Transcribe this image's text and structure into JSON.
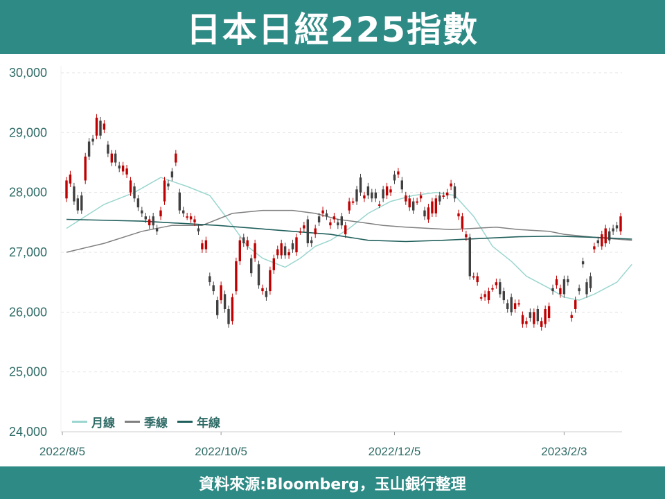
{
  "header": {
    "title": "日本日經225指數"
  },
  "footer": {
    "source": "資料來源:Bloomberg，玉山銀行整理"
  },
  "colors": {
    "band": "#2e8a85",
    "up": "#c00000",
    "down": "#404040",
    "month": "#9ad6cf",
    "quarter": "#7f7f7f",
    "year": "#1f5f5b"
  },
  "chart_data": {
    "type": "candlestick",
    "title": "日本日經225指數",
    "ylim": [
      24000,
      30000
    ],
    "y_ticks": [
      24000,
      25000,
      26000,
      27000,
      28000,
      29000,
      30000
    ],
    "y_tick_labels": [
      "24,000",
      "25,000",
      "26,000",
      "27,000",
      "28,000",
      "29,000",
      "30,000"
    ],
    "x_tick_labels": [
      "2022/8/5",
      "2022/10/5",
      "2022/12/5",
      "2023/2/3"
    ],
    "x_tick_index": [
      0,
      41,
      87,
      132
    ],
    "legend": [
      "月線",
      "季線",
      "年線"
    ],
    "legend_position": "bottom-left",
    "grid": "horizontal-dashed",
    "candles": [
      [
        27900,
        28200
      ],
      [
        28150,
        28300
      ],
      [
        28100,
        27850
      ],
      [
        27900,
        27700
      ],
      [
        27950,
        27700
      ],
      [
        28200,
        28600
      ],
      [
        28850,
        28600
      ],
      [
        28900,
        28850
      ],
      [
        28950,
        29250
      ],
      [
        29200,
        28950
      ],
      [
        29050,
        29150
      ],
      [
        28800,
        28650
      ],
      [
        28500,
        28650
      ],
      [
        28650,
        28500
      ],
      [
        28450,
        28400
      ],
      [
        28350,
        28450
      ],
      [
        28300,
        28400
      ],
      [
        28000,
        28200
      ],
      [
        28100,
        27900
      ],
      [
        27900,
        27750
      ],
      [
        27700,
        27650
      ],
      [
        27600,
        27550
      ],
      [
        27450,
        27550
      ],
      [
        27600,
        27450
      ],
      [
        27400,
        27350
      ],
      [
        27600,
        27700
      ],
      [
        27850,
        28200
      ],
      [
        28150,
        28100
      ],
      [
        28350,
        28250
      ],
      [
        28500,
        28650
      ],
      [
        28000,
        27700
      ],
      [
        27700,
        27650
      ],
      [
        27600,
        27600
      ],
      [
        27550,
        27600
      ],
      [
        27500,
        27550
      ],
      [
        27400,
        27350
      ],
      [
        27050,
        27150
      ],
      [
        27050,
        27200
      ],
      [
        26600,
        26500
      ],
      [
        26450,
        26350
      ],
      [
        26200,
        25950
      ],
      [
        26200,
        26450
      ],
      [
        26300,
        26050
      ],
      [
        26050,
        25800
      ],
      [
        25850,
        26250
      ],
      [
        26350,
        26850
      ],
      [
        26850,
        27200
      ],
      [
        27250,
        27150
      ],
      [
        27100,
        27200
      ],
      [
        26900,
        26650
      ],
      [
        26900,
        27150
      ],
      [
        26800,
        26450
      ],
      [
        26350,
        26400
      ],
      [
        26350,
        26250
      ],
      [
        26350,
        26700
      ],
      [
        26700,
        26900
      ],
      [
        26950,
        27050
      ],
      [
        26950,
        27150
      ],
      [
        27100,
        26950
      ],
      [
        26950,
        27000
      ],
      [
        27150,
        27050
      ],
      [
        27000,
        27250
      ],
      [
        27350,
        27350
      ],
      [
        27400,
        27450
      ],
      [
        27550,
        27150
      ],
      [
        27200,
        27150
      ],
      [
        27300,
        27400
      ],
      [
        27600,
        27500
      ],
      [
        27650,
        27700
      ],
      [
        27650,
        27600
      ],
      [
        27450,
        27500
      ],
      [
        27550,
        27600
      ],
      [
        27500,
        27450
      ],
      [
        27600,
        27450
      ],
      [
        27300,
        27450
      ],
      [
        27700,
        27850
      ],
      [
        27850,
        27850
      ],
      [
        28050,
        27850
      ],
      [
        28250,
        28000
      ],
      [
        27900,
        27950
      ],
      [
        28100,
        27950
      ],
      [
        28000,
        27900
      ],
      [
        28000,
        27900
      ],
      [
        27800,
        27800
      ],
      [
        28050,
        27900
      ],
      [
        27950,
        28100
      ],
      [
        28000,
        28050
      ],
      [
        28300,
        28200
      ],
      [
        28300,
        28350
      ],
      [
        28200,
        28050
      ],
      [
        27850,
        27950
      ],
      [
        27750,
        27900
      ],
      [
        27850,
        27700
      ],
      [
        27850,
        27850
      ],
      [
        27900,
        27950
      ],
      [
        27700,
        27600
      ],
      [
        27550,
        27750
      ],
      [
        27650,
        27850
      ],
      [
        27650,
        27900
      ],
      [
        27950,
        27850
      ],
      [
        27950,
        27950
      ],
      [
        27950,
        28000
      ],
      [
        28100,
        28150
      ],
      [
        28100,
        27900
      ],
      [
        27600,
        27650
      ],
      [
        27400,
        27600
      ],
      [
        27250,
        27300
      ],
      [
        27250,
        26600
      ],
      [
        26600,
        26600
      ],
      [
        26500,
        26600
      ],
      [
        26250,
        26250
      ],
      [
        26250,
        26300
      ],
      [
        26200,
        26350
      ],
      [
        26400,
        26400
      ],
      [
        26450,
        26500
      ],
      [
        26500,
        26300
      ],
      [
        26350,
        26200
      ],
      [
        26150,
        26050
      ],
      [
        26250,
        26000
      ],
      [
        26050,
        26150
      ],
      [
        26150,
        26150
      ],
      [
        25800,
        25950
      ],
      [
        25800,
        25850
      ],
      [
        26000,
        25900
      ],
      [
        25800,
        26000
      ],
      [
        26050,
        25850
      ],
      [
        25750,
        25850
      ],
      [
        25800,
        26050
      ],
      [
        25900,
        26100
      ],
      [
        26400,
        26350
      ],
      [
        26450,
        26550
      ],
      [
        26300,
        26400
      ],
      [
        26550,
        26300
      ],
      [
        26550,
        26500
      ],
      [
        25900,
        25950
      ],
      [
        26050,
        26200
      ],
      [
        26400,
        26350
      ],
      [
        26850,
        26800
      ],
      [
        26500,
        26300
      ],
      [
        26600,
        26400
      ],
      [
        27050,
        27100
      ],
      [
        27200,
        27150
      ],
      [
        27100,
        27300
      ],
      [
        27150,
        27400
      ],
      [
        27350,
        27200
      ],
      [
        27400,
        27350
      ],
      [
        27450,
        27400
      ],
      [
        27350,
        27600
      ]
    ],
    "series": [
      {
        "name": "月線",
        "points": [
          [
            0,
            27400
          ],
          [
            10,
            27800
          ],
          [
            18,
            28000
          ],
          [
            25,
            28250
          ],
          [
            32,
            28100
          ],
          [
            38,
            27950
          ],
          [
            44,
            27450
          ],
          [
            48,
            27100
          ],
          [
            52,
            26900
          ],
          [
            58,
            26750
          ],
          [
            62,
            26900
          ],
          [
            66,
            27100
          ],
          [
            70,
            27200
          ],
          [
            75,
            27400
          ],
          [
            80,
            27650
          ],
          [
            86,
            27850
          ],
          [
            92,
            27950
          ],
          [
            98,
            28000
          ],
          [
            103,
            27950
          ],
          [
            108,
            27600
          ],
          [
            113,
            27100
          ],
          [
            118,
            26850
          ],
          [
            122,
            26600
          ],
          [
            128,
            26400
          ],
          [
            132,
            26250
          ],
          [
            136,
            26200
          ],
          [
            140,
            26300
          ],
          [
            146,
            26500
          ],
          [
            150,
            26800
          ]
        ]
      },
      {
        "name": "季線",
        "points": [
          [
            0,
            27000
          ],
          [
            10,
            27150
          ],
          [
            20,
            27350
          ],
          [
            28,
            27450
          ],
          [
            36,
            27450
          ],
          [
            44,
            27650
          ],
          [
            52,
            27700
          ],
          [
            60,
            27700
          ],
          [
            66,
            27650
          ],
          [
            72,
            27550
          ],
          [
            78,
            27500
          ],
          [
            84,
            27450
          ],
          [
            90,
            27420
          ],
          [
            96,
            27400
          ],
          [
            102,
            27380
          ],
          [
            108,
            27400
          ],
          [
            114,
            27420
          ],
          [
            120,
            27380
          ],
          [
            128,
            27350
          ],
          [
            132,
            27300
          ],
          [
            140,
            27250
          ],
          [
            150,
            27200
          ]
        ]
      },
      {
        "name": "年線",
        "points": [
          [
            0,
            27550
          ],
          [
            20,
            27520
          ],
          [
            40,
            27450
          ],
          [
            60,
            27350
          ],
          [
            70,
            27300
          ],
          [
            80,
            27200
          ],
          [
            90,
            27180
          ],
          [
            100,
            27200
          ],
          [
            110,
            27230
          ],
          [
            120,
            27260
          ],
          [
            130,
            27270
          ],
          [
            140,
            27250
          ],
          [
            150,
            27220
          ]
        ]
      }
    ]
  }
}
